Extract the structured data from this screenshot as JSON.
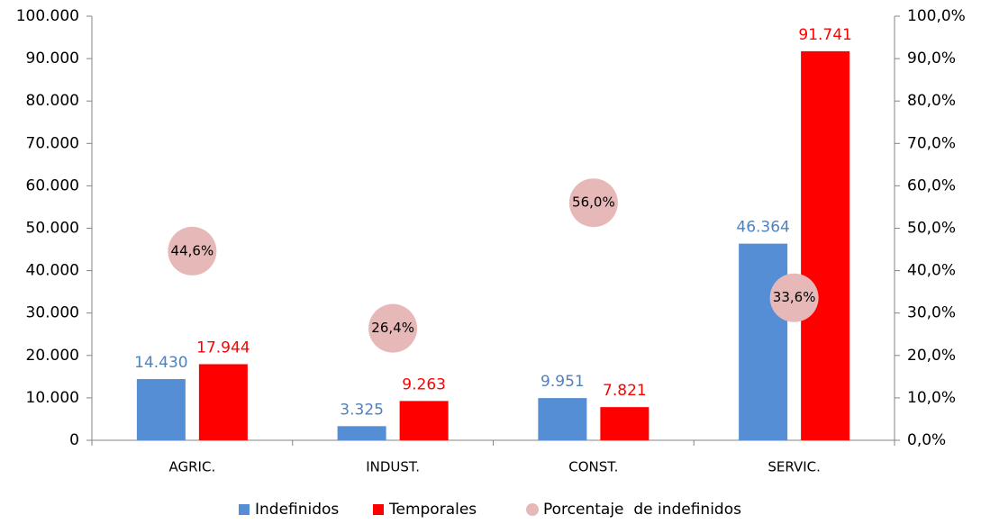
{
  "chart_data": {
    "type": "bar",
    "categories": [
      "AGRIC.",
      "INDUST.",
      "CONST.",
      "SERVIC."
    ],
    "series": [
      {
        "name": "Indefinidos",
        "color": "#558ed5",
        "label_color": "#4f81bd",
        "values": [
          14430,
          3325,
          9951,
          46364
        ],
        "value_labels": [
          "14.430",
          "3.325",
          "9.951",
          "46.364"
        ]
      },
      {
        "name": "Temporales",
        "color": "#ff0000",
        "label_color": "#ff0000",
        "values": [
          17944,
          9263,
          7821,
          91741
        ],
        "value_labels": [
          "17.944",
          "9.263",
          "7.821",
          "91.741"
        ]
      },
      {
        "name": "Porcentaje  de indefinidos",
        "type": "scatter",
        "axis": "y2",
        "color": "#e6b9b8",
        "values": [
          44.6,
          26.4,
          56.0,
          33.6
        ],
        "value_labels": [
          "44,6%",
          "26,4%",
          "56,0%",
          "33,6%"
        ]
      }
    ],
    "ylim": [
      0,
      100000
    ],
    "yticks": [
      0,
      {
        "value": 10000,
        "label": "10.000"
      },
      {
        "value": 20000,
        "label": "20.000"
      },
      {
        "value": 30000,
        "label": "30.000"
      },
      {
        "value": 40000,
        "label": "40.000"
      },
      {
        "value": 50000,
        "label": "50.000"
      },
      {
        "value": 60000,
        "label": "60.000"
      },
      {
        "value": 70000,
        "label": "70.000"
      },
      {
        "value": 80000,
        "label": "80.000"
      },
      {
        "value": 90000,
        "label": "90.000"
      },
      {
        "value": 100000,
        "label": "100.000"
      }
    ],
    "y2lim": [
      0,
      100
    ],
    "y2ticks": [
      {
        "value": 0,
        "label": "0,0%"
      },
      {
        "value": 10,
        "label": "10,0%"
      },
      {
        "value": 20,
        "label": "20,0%"
      },
      {
        "value": 30,
        "label": "30,0%"
      },
      {
        "value": 40,
        "label": "40,0%"
      },
      {
        "value": 50,
        "label": "50,0%"
      },
      {
        "value": 60,
        "label": "60,0%"
      },
      {
        "value": 70,
        "label": "70,0%"
      },
      {
        "value": 80,
        "label": "80,0%"
      },
      {
        "value": 90,
        "label": "90,0%"
      },
      {
        "value": 100,
        "label": "100,0%"
      }
    ],
    "legend": "bottom"
  }
}
